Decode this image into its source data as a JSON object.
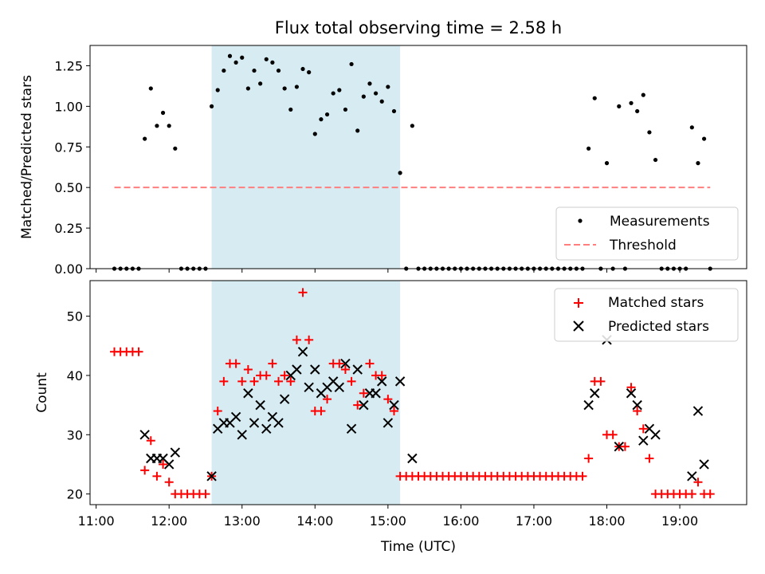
{
  "chart_data": [
    {
      "type": "scatter",
      "title": "Flux total observing time = 2.58 h",
      "xlabel": "",
      "ylabel": "Matched/Predicted stars",
      "xlim": [
        "10:55",
        "19:55"
      ],
      "ylim": [
        0,
        1.375
      ],
      "yticks": [
        0.0,
        0.25,
        0.5,
        0.75,
        1.0,
        1.25
      ],
      "ytick_labels": [
        "0.00",
        "0.25",
        "0.50",
        "0.75",
        "1.00",
        "1.25"
      ],
      "shaded_span": [
        "12:35",
        "15:10"
      ],
      "shaded_color": "#add8e6",
      "legend_position": "lower right",
      "legend": [
        "Measurements",
        "Threshold"
      ],
      "series": [
        {
          "name": "Measurements",
          "marker": "dot",
          "color": "#000000",
          "points": [
            [
              "11:15",
              0.0
            ],
            [
              "11:20",
              0.0
            ],
            [
              "11:25",
              0.0
            ],
            [
              "11:30",
              0.0
            ],
            [
              "11:35",
              0.0
            ],
            [
              "11:40",
              0.8
            ],
            [
              "11:45",
              1.11
            ],
            [
              "11:50",
              0.88
            ],
            [
              "11:55",
              0.96
            ],
            [
              "12:00",
              0.88
            ],
            [
              "12:05",
              0.74
            ],
            [
              "12:10",
              0.0
            ],
            [
              "12:15",
              0.0
            ],
            [
              "12:20",
              0.0
            ],
            [
              "12:25",
              0.0
            ],
            [
              "12:30",
              0.0
            ],
            [
              "12:35",
              1.0
            ],
            [
              "12:40",
              1.1
            ],
            [
              "12:45",
              1.22
            ],
            [
              "12:50",
              1.31
            ],
            [
              "12:55",
              1.27
            ],
            [
              "13:00",
              1.3
            ],
            [
              "13:05",
              1.11
            ],
            [
              "13:10",
              1.22
            ],
            [
              "13:15",
              1.14
            ],
            [
              "13:20",
              1.29
            ],
            [
              "13:25",
              1.27
            ],
            [
              "13:30",
              1.22
            ],
            [
              "13:35",
              1.11
            ],
            [
              "13:40",
              0.98
            ],
            [
              "13:45",
              1.12
            ],
            [
              "13:50",
              1.23
            ],
            [
              "13:55",
              1.21
            ],
            [
              "14:00",
              0.83
            ],
            [
              "14:05",
              0.92
            ],
            [
              "14:10",
              0.95
            ],
            [
              "14:15",
              1.08
            ],
            [
              "14:20",
              1.1
            ],
            [
              "14:25",
              0.98
            ],
            [
              "14:30",
              1.26
            ],
            [
              "14:35",
              0.85
            ],
            [
              "14:40",
              1.06
            ],
            [
              "14:45",
              1.14
            ],
            [
              "14:50",
              1.08
            ],
            [
              "14:55",
              1.03
            ],
            [
              "15:00",
              1.12
            ],
            [
              "15:05",
              0.97
            ],
            [
              "15:10",
              0.59
            ],
            [
              "15:15",
              0.0
            ],
            [
              "15:20",
              0.88
            ],
            [
              "15:25",
              0.0
            ],
            [
              "15:30",
              0.0
            ],
            [
              "15:35",
              0.0
            ],
            [
              "15:40",
              0.0
            ],
            [
              "15:45",
              0.0
            ],
            [
              "15:50",
              0.0
            ],
            [
              "15:55",
              0.0
            ],
            [
              "16:00",
              0.0
            ],
            [
              "16:05",
              0.0
            ],
            [
              "16:10",
              0.0
            ],
            [
              "16:15",
              0.0
            ],
            [
              "16:20",
              0.0
            ],
            [
              "16:25",
              0.0
            ],
            [
              "16:30",
              0.0
            ],
            [
              "16:35",
              0.0
            ],
            [
              "16:40",
              0.0
            ],
            [
              "16:45",
              0.0
            ],
            [
              "16:50",
              0.0
            ],
            [
              "16:55",
              0.0
            ],
            [
              "17:00",
              0.0
            ],
            [
              "17:05",
              0.0
            ],
            [
              "17:10",
              0.0
            ],
            [
              "17:15",
              0.0
            ],
            [
              "17:20",
              0.0
            ],
            [
              "17:25",
              0.0
            ],
            [
              "17:30",
              0.0
            ],
            [
              "17:35",
              0.0
            ],
            [
              "17:40",
              0.0
            ],
            [
              "17:45",
              0.74
            ],
            [
              "17:50",
              1.05
            ],
            [
              "17:55",
              0.0
            ],
            [
              "18:00",
              0.65
            ],
            [
              "18:05",
              0.0
            ],
            [
              "18:10",
              1.0
            ],
            [
              "18:15",
              0.0
            ],
            [
              "18:20",
              1.02
            ],
            [
              "18:25",
              0.97
            ],
            [
              "18:30",
              1.07
            ],
            [
              "18:35",
              0.84
            ],
            [
              "18:40",
              0.67
            ],
            [
              "18:45",
              0.0
            ],
            [
              "18:50",
              0.0
            ],
            [
              "18:55",
              0.0
            ],
            [
              "19:00",
              0.0
            ],
            [
              "19:05",
              0.0
            ],
            [
              "19:10",
              0.87
            ],
            [
              "19:15",
              0.65
            ],
            [
              "19:20",
              0.8
            ],
            [
              "19:25",
              0.0
            ]
          ]
        },
        {
          "name": "Threshold",
          "marker": "dashed-line",
          "color": "#ff7f7f",
          "points": [
            [
              "11:15",
              0.5
            ],
            [
              "19:25",
              0.5
            ]
          ]
        }
      ]
    },
    {
      "type": "scatter",
      "title": "",
      "xlabel": "Time (UTC)",
      "ylabel": "Count",
      "xlim": [
        "10:55",
        "19:55"
      ],
      "ylim": [
        18.2,
        56
      ],
      "yticks": [
        20,
        30,
        40,
        50
      ],
      "ytick_labels": [
        "20",
        "30",
        "40",
        "50"
      ],
      "xticks": [
        "11:00",
        "12:00",
        "13:00",
        "14:00",
        "15:00",
        "16:00",
        "17:00",
        "18:00",
        "19:00"
      ],
      "shaded_span": [
        "12:35",
        "15:10"
      ],
      "shaded_color": "#add8e6",
      "legend_position": "upper right",
      "legend": [
        "Matched stars",
        "Predicted stars"
      ],
      "series": [
        {
          "name": "Matched stars",
          "marker": "plus",
          "color": "#ff0000",
          "points": [
            [
              "11:15",
              44
            ],
            [
              "11:20",
              44
            ],
            [
              "11:25",
              44
            ],
            [
              "11:30",
              44
            ],
            [
              "11:35",
              44
            ],
            [
              "11:40",
              24
            ],
            [
              "11:45",
              29
            ],
            [
              "11:50",
              23
            ],
            [
              "11:55",
              25
            ],
            [
              "12:00",
              22
            ],
            [
              "12:05",
              20
            ],
            [
              "12:10",
              20
            ],
            [
              "12:15",
              20
            ],
            [
              "12:20",
              20
            ],
            [
              "12:25",
              20
            ],
            [
              "12:30",
              20
            ],
            [
              "12:35",
              23
            ],
            [
              "12:40",
              34
            ],
            [
              "12:45",
              39
            ],
            [
              "12:50",
              42
            ],
            [
              "12:55",
              42
            ],
            [
              "13:00",
              39
            ],
            [
              "13:05",
              41
            ],
            [
              "13:10",
              39
            ],
            [
              "13:15",
              40
            ],
            [
              "13:20",
              40
            ],
            [
              "13:25",
              42
            ],
            [
              "13:30",
              39
            ],
            [
              "13:35",
              40
            ],
            [
              "13:40",
              39
            ],
            [
              "13:45",
              46
            ],
            [
              "13:50",
              54
            ],
            [
              "13:55",
              46
            ],
            [
              "14:00",
              34
            ],
            [
              "14:05",
              34
            ],
            [
              "14:10",
              36
            ],
            [
              "14:15",
              42
            ],
            [
              "14:20",
              42
            ],
            [
              "14:25",
              41
            ],
            [
              "14:30",
              39
            ],
            [
              "14:35",
              35
            ],
            [
              "14:40",
              37
            ],
            [
              "14:45",
              42
            ],
            [
              "14:50",
              40
            ],
            [
              "14:55",
              40
            ],
            [
              "15:00",
              36
            ],
            [
              "15:05",
              34
            ],
            [
              "15:10",
              23
            ],
            [
              "15:15",
              23
            ],
            [
              "15:20",
              23
            ],
            [
              "15:25",
              23
            ],
            [
              "15:30",
              23
            ],
            [
              "15:35",
              23
            ],
            [
              "15:40",
              23
            ],
            [
              "15:45",
              23
            ],
            [
              "15:50",
              23
            ],
            [
              "15:55",
              23
            ],
            [
              "16:00",
              23
            ],
            [
              "16:05",
              23
            ],
            [
              "16:10",
              23
            ],
            [
              "16:15",
              23
            ],
            [
              "16:20",
              23
            ],
            [
              "16:25",
              23
            ],
            [
              "16:30",
              23
            ],
            [
              "16:35",
              23
            ],
            [
              "16:40",
              23
            ],
            [
              "16:45",
              23
            ],
            [
              "16:50",
              23
            ],
            [
              "16:55",
              23
            ],
            [
              "17:00",
              23
            ],
            [
              "17:05",
              23
            ],
            [
              "17:10",
              23
            ],
            [
              "17:15",
              23
            ],
            [
              "17:20",
              23
            ],
            [
              "17:25",
              23
            ],
            [
              "17:30",
              23
            ],
            [
              "17:35",
              23
            ],
            [
              "17:40",
              23
            ],
            [
              "17:45",
              26
            ],
            [
              "17:50",
              39
            ],
            [
              "17:55",
              39
            ],
            [
              "18:00",
              30
            ],
            [
              "18:05",
              30
            ],
            [
              "18:10",
              28
            ],
            [
              "18:15",
              28
            ],
            [
              "18:20",
              38
            ],
            [
              "18:25",
              34
            ],
            [
              "18:30",
              31
            ],
            [
              "18:35",
              26
            ],
            [
              "18:40",
              20
            ],
            [
              "18:45",
              20
            ],
            [
              "18:50",
              20
            ],
            [
              "18:55",
              20
            ],
            [
              "19:00",
              20
            ],
            [
              "19:05",
              20
            ],
            [
              "19:10",
              20
            ],
            [
              "19:15",
              22
            ],
            [
              "19:20",
              20
            ],
            [
              "19:25",
              20
            ]
          ]
        },
        {
          "name": "Predicted stars",
          "marker": "x",
          "color": "#000000",
          "points": [
            [
              "11:40",
              30
            ],
            [
              "11:45",
              26
            ],
            [
              "11:50",
              26
            ],
            [
              "11:55",
              26
            ],
            [
              "12:00",
              25
            ],
            [
              "12:05",
              27
            ],
            [
              "12:35",
              23
            ],
            [
              "12:40",
              31
            ],
            [
              "12:45",
              32
            ],
            [
              "12:50",
              32
            ],
            [
              "12:55",
              33
            ],
            [
              "13:00",
              30
            ],
            [
              "13:05",
              37
            ],
            [
              "13:10",
              32
            ],
            [
              "13:15",
              35
            ],
            [
              "13:20",
              31
            ],
            [
              "13:25",
              33
            ],
            [
              "13:30",
              32
            ],
            [
              "13:35",
              36
            ],
            [
              "13:40",
              40
            ],
            [
              "13:45",
              41
            ],
            [
              "13:50",
              44
            ],
            [
              "13:55",
              38
            ],
            [
              "14:00",
              41
            ],
            [
              "14:05",
              37
            ],
            [
              "14:10",
              38
            ],
            [
              "14:15",
              39
            ],
            [
              "14:20",
              38
            ],
            [
              "14:25",
              42
            ],
            [
              "14:30",
              31
            ],
            [
              "14:35",
              41
            ],
            [
              "14:40",
              35
            ],
            [
              "14:45",
              37
            ],
            [
              "14:50",
              37
            ],
            [
              "14:55",
              39
            ],
            [
              "15:00",
              32
            ],
            [
              "15:05",
              35
            ],
            [
              "15:10",
              39
            ],
            [
              "15:20",
              26
            ],
            [
              "17:45",
              35
            ],
            [
              "17:50",
              37
            ],
            [
              "18:00",
              46
            ],
            [
              "18:10",
              28
            ],
            [
              "18:20",
              37
            ],
            [
              "18:25",
              35
            ],
            [
              "18:30",
              29
            ],
            [
              "18:35",
              31
            ],
            [
              "18:40",
              30
            ],
            [
              "19:10",
              23
            ],
            [
              "19:15",
              34
            ],
            [
              "19:20",
              25
            ]
          ]
        }
      ]
    }
  ]
}
